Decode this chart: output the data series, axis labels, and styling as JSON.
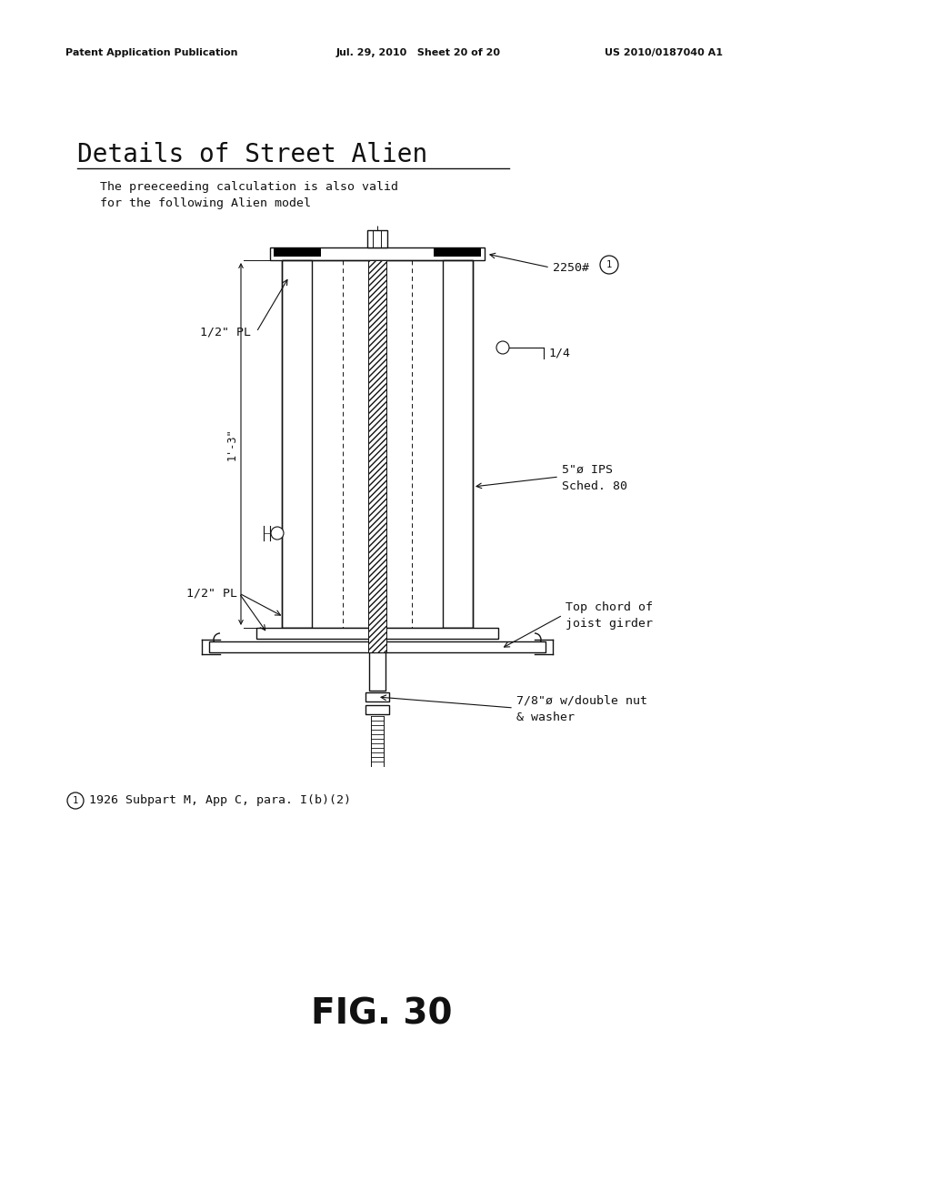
{
  "bg_color": "#ffffff",
  "header_left": "Patent Application Publication",
  "header_mid": "Jul. 29, 2010   Sheet 20 of 20",
  "header_right": "US 2010/0187040 A1",
  "title": "Details of Street Alien",
  "subtitle_line1": "The preeceeding calculation is also valid",
  "subtitle_line2": "for the following Alien model",
  "label_2250": "2250#",
  "label_half_pl_top": "1/2\" PL",
  "label_quarter": "1/4",
  "label_5phi": "5\"ø IPS",
  "label_sched": "Sched. 80",
  "label_dim": "1'-3\"",
  "label_half_pl_bot": "1/2\" PL",
  "label_top_chord1": "Top chord of",
  "label_top_chord2": "joist girder",
  "label_bolt1": "7/8\"ø w/double nut",
  "label_bolt2": "& washer",
  "label_footnote": "1926 Subpart M, App C, para. I(b)(2)",
  "label_fig": "FIG. 30"
}
